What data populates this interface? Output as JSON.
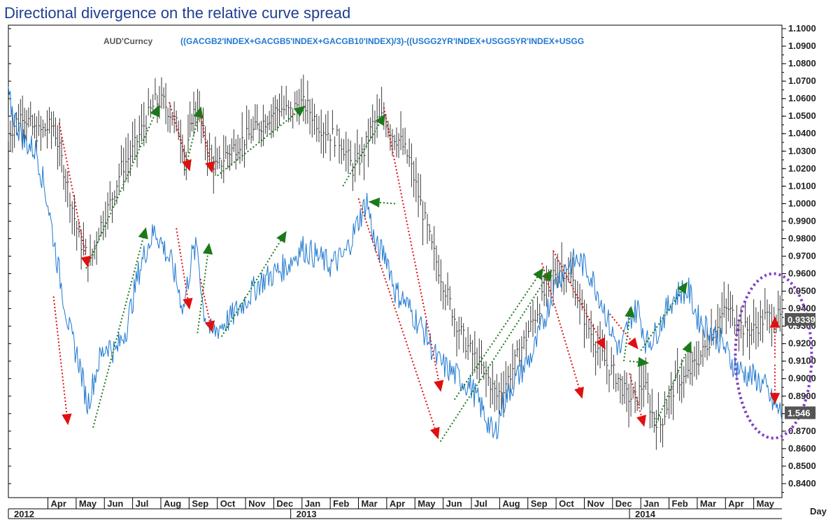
{
  "title": "Directional divergence on the relative curve spread",
  "colors": {
    "aud_series": "#3a3a3a",
    "spread_series": "#1e78d0",
    "up_arrow": "#1a7a1a",
    "down_arrow": "#e01010",
    "ellipse": "#7d3fc2",
    "title": "#1f3f8f",
    "last_badge": "#555555"
  },
  "chart_data": {
    "type": "line",
    "title": "Directional divergence on the relative curve spread",
    "xlabel": "Day",
    "ylabel": "",
    "y_right_axis": {
      "ylim": [
        0.832,
        1.102
      ],
      "ticks": [
        "1.1000",
        "1.0900",
        "1.0800",
        "1.0700",
        "1.0600",
        "1.0500",
        "1.0400",
        "1.0300",
        "1.0200",
        "1.0100",
        "1.0000",
        "0.9900",
        "0.9800",
        "0.9700",
        "0.9600",
        "0.9500",
        "0.9400",
        "0.9300",
        "0.9200",
        "0.9100",
        "0.9000",
        "0.8900",
        "0.8800",
        "0.8700",
        "0.8600",
        "0.8500",
        "0.8400"
      ]
    },
    "x_axis": {
      "range": [
        2.6,
        30.0
      ],
      "months": [
        {
          "label": "Apr",
          "x": 4
        },
        {
          "label": "May",
          "x": 5
        },
        {
          "label": "Jun",
          "x": 6
        },
        {
          "label": "Jul",
          "x": 7
        },
        {
          "label": "Aug",
          "x": 8
        },
        {
          "label": "Sep",
          "x": 9
        },
        {
          "label": "Oct",
          "x": 10
        },
        {
          "label": "Nov",
          "x": 11
        },
        {
          "label": "Dec",
          "x": 12
        },
        {
          "label": "Jan",
          "x": 13
        },
        {
          "label": "Feb",
          "x": 14
        },
        {
          "label": "Mar",
          "x": 15
        },
        {
          "label": "Apr",
          "x": 16
        },
        {
          "label": "May",
          "x": 17
        },
        {
          "label": "Jun",
          "x": 18
        },
        {
          "label": "Jul",
          "x": 19
        },
        {
          "label": "Aug",
          "x": 20
        },
        {
          "label": "Sep",
          "x": 21
        },
        {
          "label": "Oct",
          "x": 22
        },
        {
          "label": "Nov",
          "x": 23
        },
        {
          "label": "Dec",
          "x": 24
        },
        {
          "label": "Jan",
          "x": 25
        },
        {
          "label": "Feb",
          "x": 26
        },
        {
          "label": "Mar",
          "x": 27
        },
        {
          "label": "Apr",
          "x": 28
        },
        {
          "label": "May",
          "x": 29
        }
      ],
      "years": [
        {
          "label": "2012",
          "x": 2.6
        },
        {
          "label": "2013",
          "x": 12.6
        },
        {
          "label": "2014",
          "x": 24.6
        }
      ]
    },
    "grid": false,
    "legend_position": "top",
    "series": [
      {
        "name": "AUD'Curncy",
        "style": "ohlc-bars",
        "x": [
          2.6,
          3.1,
          3.6,
          4.2,
          4.7,
          5.1,
          5.5,
          5.8,
          6.2,
          6.6,
          7.0,
          7.4,
          7.8,
          8.1,
          8.4,
          8.7,
          8.9,
          9.1,
          9.3,
          9.5,
          9.8,
          10.0,
          10.3,
          10.8,
          11.2,
          11.7,
          12.2,
          12.6,
          12.9,
          13.2,
          13.6,
          14.0,
          14.4,
          14.8,
          15.2,
          15.5,
          15.9,
          16.2,
          16.5,
          16.8,
          17.2,
          17.6,
          18.0,
          18.4,
          18.8,
          19.2,
          19.6,
          19.9,
          20.3,
          20.7,
          21.1,
          21.5,
          21.9,
          22.2,
          22.6,
          23.0,
          23.4,
          23.8,
          24.2,
          24.5,
          24.8,
          25.1,
          25.4,
          25.7,
          26.0,
          26.3,
          26.6,
          26.9,
          27.2,
          27.5,
          27.8,
          28.1,
          28.4,
          28.7,
          29.0,
          29.4,
          29.8,
          30.0
        ],
        "values": [
          1.04,
          1.052,
          1.04,
          1.045,
          1.01,
          0.98,
          0.966,
          0.985,
          1.0,
          1.02,
          1.03,
          1.045,
          1.058,
          1.058,
          1.05,
          1.04,
          1.024,
          1.05,
          1.055,
          1.04,
          1.025,
          1.02,
          1.028,
          1.035,
          1.04,
          1.048,
          1.055,
          1.052,
          1.058,
          1.055,
          1.045,
          1.04,
          1.035,
          1.02,
          1.03,
          1.045,
          1.05,
          1.04,
          1.035,
          1.025,
          1.0,
          0.975,
          0.955,
          0.935,
          0.92,
          0.91,
          0.9,
          0.89,
          0.9,
          0.915,
          0.93,
          0.945,
          0.96,
          0.964,
          0.955,
          0.935,
          0.92,
          0.908,
          0.9,
          0.89,
          0.888,
          0.898,
          0.88,
          0.874,
          0.888,
          0.9,
          0.9,
          0.908,
          0.915,
          0.925,
          0.935,
          0.94,
          0.933,
          0.928,
          0.928,
          0.935,
          0.935,
          0.9339
        ]
      },
      {
        "name": "((GACGB2'INDEX+GACGB5'INDEX+GACGB10'INDEX)/3)-((USGG2YR'INDEX+USGG5YR'INDEX+USGG",
        "style": "line",
        "x": [
          2.6,
          2.9,
          3.2,
          3.6,
          4.0,
          4.4,
          4.8,
          5.1,
          5.4,
          5.8,
          6.1,
          6.4,
          6.8,
          7.2,
          7.5,
          7.8,
          8.1,
          8.4,
          8.8,
          9.1,
          9.3,
          9.5,
          9.8,
          10.1,
          10.5,
          11.0,
          11.5,
          12.0,
          12.5,
          13.0,
          13.5,
          14.0,
          14.5,
          15.0,
          15.3,
          15.6,
          16.0,
          16.3,
          16.6,
          17.0,
          17.4,
          17.8,
          18.2,
          18.6,
          19.0,
          19.3,
          19.6,
          19.8,
          20.1,
          20.4,
          20.8,
          21.2,
          21.6,
          22.0,
          22.4,
          22.8,
          23.2,
          23.6,
          24.0,
          24.3,
          24.6,
          24.9,
          25.2,
          25.5,
          25.8,
          26.1,
          26.4,
          26.7,
          27.0,
          27.3,
          27.6,
          27.9,
          28.2,
          28.5,
          28.8,
          29.1,
          29.4,
          29.7,
          30.0
        ],
        "values": [
          1.06,
          1.045,
          1.035,
          1.03,
          1.0,
          0.96,
          0.925,
          0.91,
          0.885,
          0.91,
          0.92,
          0.915,
          0.93,
          0.96,
          0.975,
          0.985,
          0.975,
          0.965,
          0.94,
          0.97,
          0.975,
          0.94,
          0.925,
          0.93,
          0.935,
          0.945,
          0.955,
          0.96,
          0.965,
          0.975,
          0.97,
          0.965,
          0.97,
          0.99,
          1.002,
          0.975,
          0.97,
          0.95,
          0.945,
          0.935,
          0.925,
          0.91,
          0.905,
          0.9,
          0.895,
          0.885,
          0.875,
          0.866,
          0.885,
          0.895,
          0.905,
          0.915,
          0.935,
          0.955,
          0.965,
          0.968,
          0.96,
          0.945,
          0.925,
          0.915,
          0.935,
          0.94,
          0.92,
          0.925,
          0.935,
          0.945,
          0.95,
          0.95,
          0.935,
          0.93,
          0.925,
          0.92,
          0.91,
          0.905,
          0.902,
          0.9,
          0.895,
          0.885,
          0.88
        ]
      }
    ],
    "annotations": {
      "up_trend_arrows": [
        {
          "x1": 5.6,
          "y1": 0.872,
          "x2": 7.45,
          "y2": 0.985
        },
        {
          "x1": 5.35,
          "y1": 0.963,
          "x2": 7.9,
          "y2": 1.055
        },
        {
          "x1": 9.3,
          "y1": 0.926,
          "x2": 9.7,
          "y2": 0.976
        },
        {
          "x1": 8.85,
          "y1": 1.019,
          "x2": 9.4,
          "y2": 1.054
        },
        {
          "x1": 10.15,
          "y1": 0.924,
          "x2": 12.4,
          "y2": 0.983
        },
        {
          "x1": 10.0,
          "y1": 1.016,
          "x2": 13.05,
          "y2": 1.055
        },
        {
          "x1": 14.45,
          "y1": 1.01,
          "x2": 15.9,
          "y2": 1.05
        },
        {
          "x1": 16.3,
          "y1": 1.0,
          "x2": 15.45,
          "y2": 1.001
        },
        {
          "x1": 17.9,
          "y1": 0.864,
          "x2": 21.8,
          "y2": 0.961
        },
        {
          "x1": 18.4,
          "y1": 0.888,
          "x2": 21.5,
          "y2": 0.962
        },
        {
          "x1": 24.4,
          "y1": 0.91,
          "x2": 24.65,
          "y2": 0.94
        },
        {
          "x1": 24.6,
          "y1": 0.91,
          "x2": 25.2,
          "y2": 0.909
        },
        {
          "x1": 25.0,
          "y1": 0.916,
          "x2": 26.6,
          "y2": 0.954
        },
        {
          "x1": 25.5,
          "y1": 0.873,
          "x2": 26.75,
          "y2": 0.92
        }
      ],
      "down_trend_arrows": [
        {
          "x1": 4.2,
          "y1": 0.947,
          "x2": 4.7,
          "y2": 0.875
        },
        {
          "x1": 4.4,
          "y1": 1.046,
          "x2": 5.4,
          "y2": 0.965
        },
        {
          "x1": 8.55,
          "y1": 0.986,
          "x2": 9.0,
          "y2": 0.941
        },
        {
          "x1": 8.3,
          "y1": 1.058,
          "x2": 9.0,
          "y2": 1.02
        },
        {
          "x1": 9.4,
          "y1": 0.957,
          "x2": 9.8,
          "y2": 0.928
        },
        {
          "x1": 9.4,
          "y1": 1.051,
          "x2": 9.8,
          "y2": 1.019
        },
        {
          "x1": 15.0,
          "y1": 1.003,
          "x2": 17.8,
          "y2": 0.867
        },
        {
          "x1": 15.9,
          "y1": 1.055,
          "x2": 17.9,
          "y2": 0.894
        },
        {
          "x1": 21.5,
          "y1": 0.966,
          "x2": 22.9,
          "y2": 0.89
        },
        {
          "x1": 21.9,
          "y1": 0.973,
          "x2": 23.7,
          "y2": 0.918
        },
        {
          "x1": 23.9,
          "y1": 0.937,
          "x2": 24.85,
          "y2": 0.918
        },
        {
          "x1": 24.6,
          "y1": 0.903,
          "x2": 25.1,
          "y2": 0.874
        },
        {
          "x1": 29.75,
          "y1": 0.908,
          "x2": 29.75,
          "y2": 0.887
        }
      ],
      "up_red_arrows": [
        {
          "x1": 29.75,
          "y1": 0.912,
          "x2": 29.75,
          "y2": 0.934
        }
      ],
      "ellipse": {
        "cx": 29.7,
        "cy": 0.913,
        "rx": 1.35,
        "ry": 0.047
      }
    },
    "last_values": [
      {
        "series": "AUD'Curncy",
        "label": "0.9339",
        "y": 0.9339
      },
      {
        "series": "spread",
        "label": "1.546",
        "y": 0.8805
      }
    ]
  }
}
